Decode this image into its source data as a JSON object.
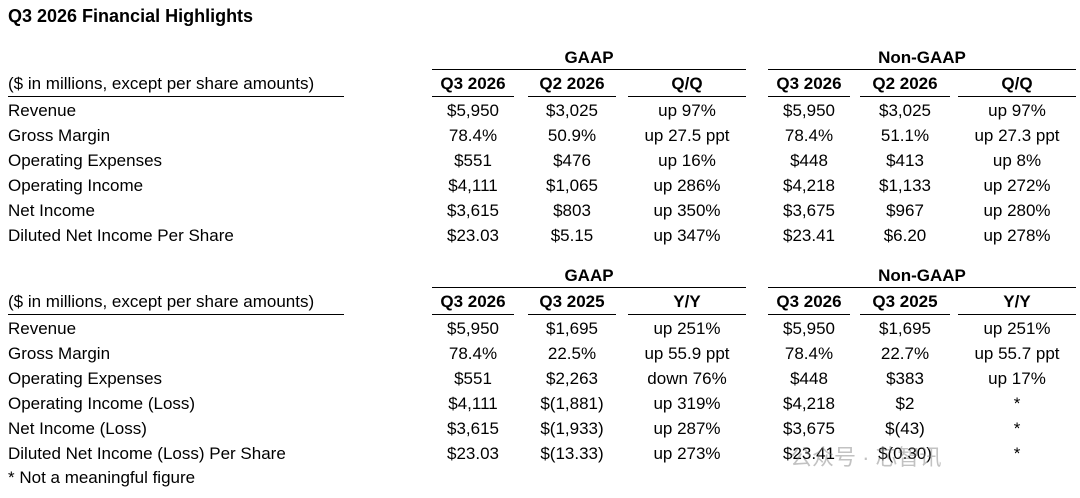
{
  "title": "Q3 2026 Financial Highlights",
  "footnote": "* Not a meaningful figure",
  "watermark": "公众号 · 芯智讯",
  "tables": [
    {
      "group_labels": [
        "GAAP",
        "Non-GAAP"
      ],
      "label_header": "($ in millions, except per share amounts)",
      "columns": [
        "Q3 2026",
        "Q2 2026",
        "Q/Q",
        "Q3 2026",
        "Q2 2026",
        "Q/Q"
      ],
      "rows": [
        {
          "label": "Revenue",
          "values": [
            "$5,950",
            "$3,025",
            "up 97%",
            "$5,950",
            "$3,025",
            "up 97%"
          ]
        },
        {
          "label": "Gross Margin",
          "values": [
            "78.4%",
            "50.9%",
            "up 27.5 ppt",
            "78.4%",
            "51.1%",
            "up 27.3 ppt"
          ]
        },
        {
          "label": "Operating Expenses",
          "values": [
            "$551",
            "$476",
            "up 16%",
            "$448",
            "$413",
            "up 8%"
          ]
        },
        {
          "label": "Operating Income",
          "values": [
            "$4,111",
            "$1,065",
            "up 286%",
            "$4,218",
            "$1,133",
            "up 272%"
          ]
        },
        {
          "label": "Net Income",
          "values": [
            "$3,615",
            "$803",
            "up 350%",
            "$3,675",
            "$967",
            "up 280%"
          ]
        },
        {
          "label": "Diluted Net Income Per Share",
          "values": [
            "$23.03",
            "$5.15",
            "up 347%",
            "$23.41",
            "$6.20",
            "up 278%"
          ]
        }
      ]
    },
    {
      "group_labels": [
        "GAAP",
        "Non-GAAP"
      ],
      "label_header": "($ in millions, except per share amounts)",
      "columns": [
        "Q3 2026",
        "Q3 2025",
        "Y/Y",
        "Q3 2026",
        "Q3 2025",
        "Y/Y"
      ],
      "rows": [
        {
          "label": "Revenue",
          "values": [
            "$5,950",
            "$1,695",
            "up 251%",
            "$5,950",
            "$1,695",
            "up 251%"
          ]
        },
        {
          "label": "Gross Margin",
          "values": [
            "78.4%",
            "22.5%",
            "up 55.9 ppt",
            "78.4%",
            "22.7%",
            "up 55.7 ppt"
          ]
        },
        {
          "label": "Operating Expenses",
          "values": [
            "$551",
            "$2,263",
            "down 76%",
            "$448",
            "$383",
            "up 17%"
          ]
        },
        {
          "label": "Operating Income (Loss)",
          "values": [
            "$4,111",
            "$(1,881)",
            "up 319%",
            "$4,218",
            "$2",
            "*"
          ]
        },
        {
          "label": "Net Income (Loss)",
          "values": [
            "$3,615",
            "$(1,933)",
            "up 287%",
            "$3,675",
            "$(43)",
            "*"
          ]
        },
        {
          "label": "Diluted Net Income (Loss) Per Share",
          "values": [
            "$23.03",
            "$(13.33)",
            "up 273%",
            "$23.41",
            "$(0.30)",
            "*"
          ]
        }
      ]
    }
  ]
}
